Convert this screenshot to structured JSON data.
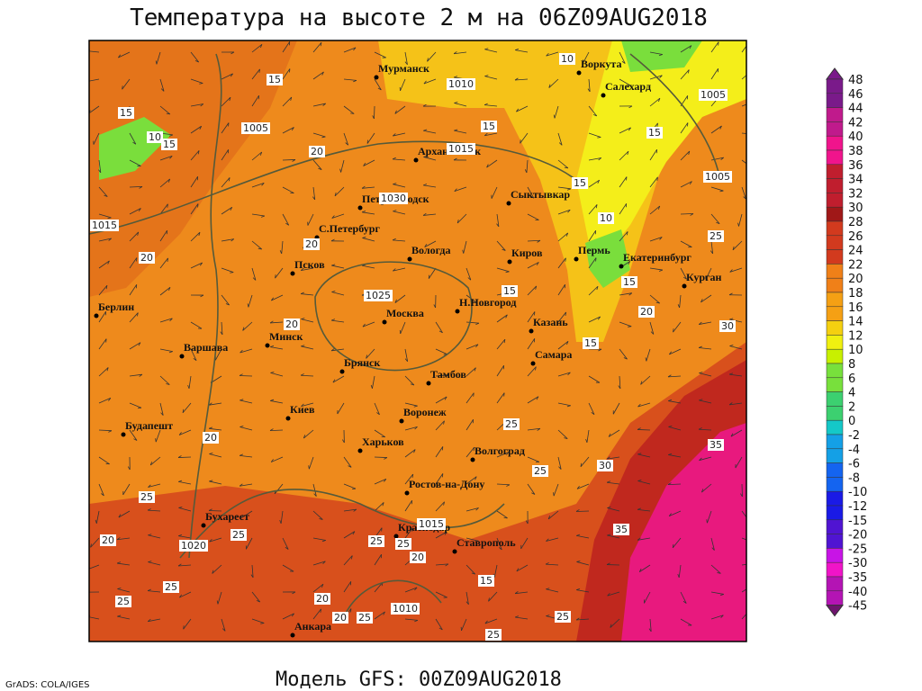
{
  "header": {
    "title": "Температура на высоте 2 м на 06Z09AUG2018"
  },
  "footer": {
    "model": "Модель GFS: 00Z09AUG2018",
    "credit": "GrADS: COLA/IGES"
  },
  "colorbar": {
    "labels": [
      48,
      46,
      44,
      42,
      40,
      38,
      36,
      34,
      32,
      30,
      28,
      26,
      24,
      22,
      20,
      18,
      16,
      14,
      12,
      10,
      8,
      6,
      4,
      2,
      0,
      -2,
      -4,
      -6,
      -8,
      -10,
      -12,
      -15,
      -20,
      -25,
      -30,
      -35,
      -40,
      -45
    ]
  },
  "cities": [
    "Мурманск",
    "Воркута",
    "Салехард",
    "Архангельск",
    "Сыктывкар",
    "Петрозаводск",
    "С.Петербург",
    "Вологда",
    "Киров",
    "Пермь",
    "Екатеринбург",
    "Курган",
    "Псков",
    "Берлин",
    "Н.Новгород",
    "Москва",
    "Казань",
    "Варшава",
    "Минск",
    "Самара",
    "Брянск",
    "Тамбов",
    "Киев",
    "Воронеж",
    "Будапешт",
    "Харьков",
    "Волгоград",
    "Ростов-на-Дону",
    "Бухарест",
    "Краснодар",
    "Ставрополь",
    "Анкара"
  ],
  "contour_labels": [
    "15",
    "1010",
    "10",
    "1005",
    "15",
    "10",
    "15",
    "1005",
    "20",
    "1015",
    "15",
    "15",
    "1005",
    "15",
    "10",
    "1030",
    "1015",
    "20",
    "20",
    "25",
    "15",
    "1025",
    "15",
    "20",
    "20",
    "30",
    "15",
    "25",
    "20",
    "35",
    "30",
    "25",
    "25",
    "1015",
    "35",
    "1020",
    "25",
    "20",
    "25",
    "25",
    "20",
    "15",
    "25",
    "25",
    "20",
    "1010",
    "20",
    "25",
    "25",
    "25"
  ]
}
